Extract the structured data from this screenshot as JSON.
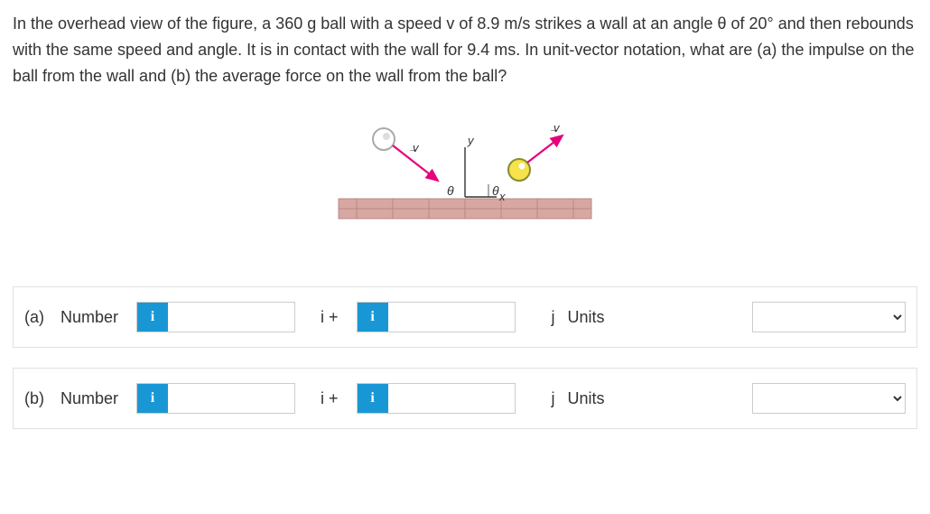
{
  "question": {
    "text": "In the overhead view of the figure, a 360 g ball with a speed v of 8.9 m/s strikes a wall at an angle θ of 20° and then rebounds with the same speed and angle. It is in contact with the wall for 9.4 ms. In unit-vector notation, what are (a) the impulse on the ball from the wall and (b) the average force on the wall from the ball?"
  },
  "figure": {
    "axis_x_label": "x",
    "axis_y_label": "y",
    "angle_label": "θ",
    "vector_label": "v",
    "colors": {
      "wall_fill": "#d8a7a2",
      "wall_line": "#b78a85",
      "vector": "#e6007e",
      "ball_fill": "#f6e24a",
      "ball_stroke": "#8a8a32",
      "axis": "#333333"
    }
  },
  "rows": {
    "a": {
      "part": "(a)",
      "label": "Number",
      "sep": "i +",
      "j": "j",
      "units_label": "Units"
    },
    "b": {
      "part": "(b)",
      "label": "Number",
      "sep": "i +",
      "j": "j",
      "units_label": "Units"
    }
  },
  "badge": "i"
}
